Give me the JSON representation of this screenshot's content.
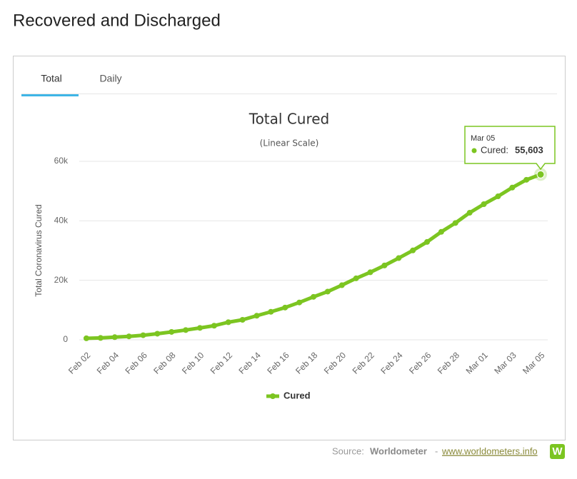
{
  "page": {
    "heading": "Recovered and Discharged",
    "tabs": [
      "Total",
      "Daily"
    ],
    "source": {
      "prefix": "Source:",
      "name": "Worldometer",
      "separator": "-",
      "link": "www.worldometers.info",
      "logo": "W"
    }
  },
  "chart_data": {
    "type": "line",
    "title": "Total Cured",
    "subtitle": "(Linear Scale)",
    "y_label": "Total Coronavirus Cured",
    "categories": [
      "Feb 02",
      null,
      "Feb 04",
      null,
      "Feb 06",
      null,
      "Feb 08",
      null,
      "Feb 10",
      null,
      "Feb 12",
      null,
      "Feb 14",
      null,
      "Feb 16",
      null,
      "Feb 18",
      null,
      "Feb 20",
      null,
      "Feb 22",
      null,
      "Feb 24",
      null,
      "Feb 26",
      null,
      "Feb 28",
      null,
      "Mar 01",
      null,
      "Mar 03",
      null,
      "Mar 05"
    ],
    "series": [
      {
        "name": "Cured",
        "color": "#7cc521",
        "values": [
          510,
          633,
          893,
          1153,
          1540,
          2050,
          2649,
          3281,
          3996,
          4740,
          5911,
          6723,
          8096,
          9419,
          10844,
          12552,
          14438,
          16208,
          18354,
          20659,
          22699,
          24990,
          27467,
          30053,
          32898,
          36291,
          39279,
          42716,
          45602,
          48228,
          51171,
          53796,
          55603
        ],
        "value_labels": [
          null,
          null,
          null,
          null,
          null,
          null,
          null,
          null,
          null,
          null,
          null,
          null,
          null,
          null,
          null,
          null,
          null,
          null,
          null,
          null,
          null,
          null,
          null,
          null,
          null,
          null,
          null,
          null,
          null,
          null,
          null,
          null,
          "55,603"
        ]
      }
    ],
    "tooltip_label": "Cured:",
    "ylim": [
      0,
      60000
    ],
    "yticks": [
      0,
      {
        "value": 20000,
        "label": "20k"
      },
      {
        "value": 40000,
        "label": "40k"
      },
      {
        "value": 60000,
        "label": "60k"
      }
    ],
    "grid": true
  }
}
